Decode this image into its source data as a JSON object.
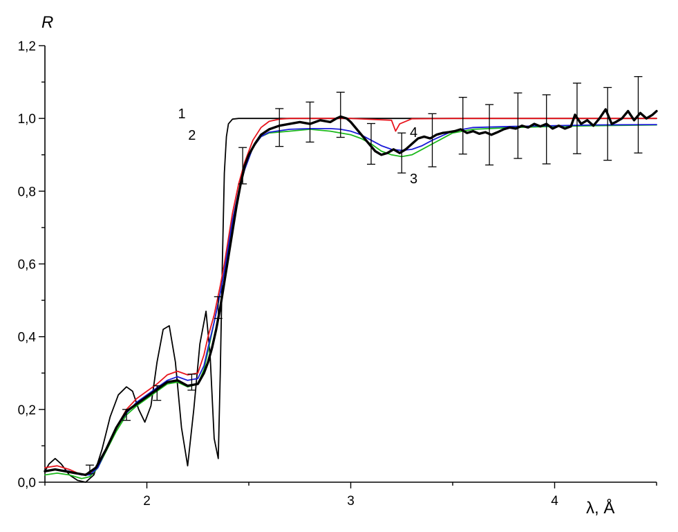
{
  "chart_data": {
    "type": "line",
    "xlabel": "λ, Å",
    "ylabel": "R",
    "xlim": [
      1.5,
      4.5
    ],
    "ylim": [
      0.0,
      1.2
    ],
    "x_ticks": [
      {
        "value": 2,
        "label": "2"
      },
      {
        "value": 3,
        "label": "3"
      },
      {
        "value": 4,
        "label": "4"
      }
    ],
    "y_ticks": [
      {
        "value": 0.0,
        "label": "0,0"
      },
      {
        "value": 0.2,
        "label": "0,2"
      },
      {
        "value": 0.4,
        "label": "0,4"
      },
      {
        "value": 0.6,
        "label": "0,6"
      },
      {
        "value": 0.8,
        "label": "0,8"
      },
      {
        "value": 1.0,
        "label": "1,0"
      },
      {
        "value": 1.2,
        "label": "1,2"
      }
    ],
    "x_minor_step": 0.5,
    "y_minor_step": 0.1,
    "grid": false,
    "series": [
      {
        "color": "#000000",
        "width": 1.8,
        "x": [
          1.5,
          1.52,
          1.55,
          1.58,
          1.62,
          1.66,
          1.7,
          1.74,
          1.78,
          1.82,
          1.86,
          1.9,
          1.93,
          1.96,
          1.99,
          2.02,
          2.05,
          2.08,
          2.11,
          2.14,
          2.17,
          2.2,
          2.23,
          2.26,
          2.29,
          2.31,
          2.33,
          2.35,
          2.36,
          2.37,
          2.38,
          2.39,
          2.4,
          2.42,
          2.45,
          2.5,
          2.6,
          3.0,
          3.5,
          4.0,
          4.5
        ],
        "y": [
          0.03,
          0.05,
          0.065,
          0.05,
          0.02,
          0.005,
          0.0,
          0.02,
          0.09,
          0.18,
          0.24,
          0.262,
          0.25,
          0.2,
          0.165,
          0.21,
          0.33,
          0.42,
          0.43,
          0.33,
          0.15,
          0.045,
          0.2,
          0.38,
          0.47,
          0.35,
          0.12,
          0.065,
          0.3,
          0.6,
          0.85,
          0.95,
          0.985,
          0.998,
          1.0,
          1.0,
          1.0,
          1.0,
          1.0,
          1.0,
          1.0
        ]
      },
      {
        "color": "#e8141c",
        "width": 1.8,
        "x": [
          1.5,
          1.56,
          1.62,
          1.68,
          1.72,
          1.76,
          1.8,
          1.85,
          1.9,
          1.95,
          2.0,
          2.05,
          2.1,
          2.15,
          2.2,
          2.25,
          2.28,
          2.3,
          2.33,
          2.36,
          2.38,
          2.4,
          2.42,
          2.45,
          2.48,
          2.52,
          2.56,
          2.6,
          2.65,
          2.7,
          3.0,
          3.2,
          3.22,
          3.24,
          3.3,
          3.5,
          4.0,
          4.5
        ],
        "y": [
          0.04,
          0.045,
          0.035,
          0.02,
          0.025,
          0.045,
          0.09,
          0.15,
          0.2,
          0.23,
          0.25,
          0.27,
          0.295,
          0.305,
          0.295,
          0.3,
          0.35,
          0.4,
          0.46,
          0.54,
          0.6,
          0.67,
          0.74,
          0.82,
          0.88,
          0.94,
          0.975,
          0.992,
          0.998,
          1.0,
          1.0,
          0.995,
          0.965,
          0.985,
          0.999,
          1.0,
          1.0,
          1.0
        ]
      },
      {
        "color": "#1ab81a",
        "width": 1.8,
        "x": [
          1.5,
          1.56,
          1.62,
          1.68,
          1.72,
          1.76,
          1.8,
          1.85,
          1.9,
          1.95,
          2.0,
          2.05,
          2.1,
          2.15,
          2.2,
          2.25,
          2.28,
          2.3,
          2.33,
          2.36,
          2.38,
          2.4,
          2.42,
          2.45,
          2.48,
          2.52,
          2.56,
          2.6,
          2.7,
          2.8,
          2.9,
          2.95,
          3.0,
          3.05,
          3.1,
          3.15,
          3.2,
          3.25,
          3.3,
          3.35,
          3.4,
          3.45,
          3.5,
          3.6,
          3.8,
          4.0,
          4.2,
          4.5
        ],
        "y": [
          0.02,
          0.025,
          0.02,
          0.01,
          0.015,
          0.04,
          0.085,
          0.14,
          0.185,
          0.21,
          0.23,
          0.25,
          0.27,
          0.275,
          0.262,
          0.27,
          0.31,
          0.36,
          0.44,
          0.52,
          0.58,
          0.65,
          0.72,
          0.8,
          0.86,
          0.92,
          0.95,
          0.96,
          0.965,
          0.97,
          0.965,
          0.96,
          0.955,
          0.945,
          0.93,
          0.91,
          0.9,
          0.895,
          0.9,
          0.915,
          0.93,
          0.945,
          0.96,
          0.97,
          0.975,
          0.978,
          0.98,
          0.982
        ]
      },
      {
        "color": "#1a1ad8",
        "width": 1.8,
        "x": [
          1.5,
          1.56,
          1.62,
          1.68,
          1.72,
          1.76,
          1.8,
          1.85,
          1.9,
          1.95,
          2.0,
          2.05,
          2.1,
          2.15,
          2.2,
          2.25,
          2.28,
          2.3,
          2.33,
          2.36,
          2.38,
          2.4,
          2.42,
          2.45,
          2.48,
          2.52,
          2.56,
          2.6,
          2.7,
          2.8,
          2.9,
          2.95,
          3.0,
          3.05,
          3.1,
          3.15,
          3.2,
          3.25,
          3.3,
          3.35,
          3.4,
          3.45,
          3.5,
          3.6,
          3.8,
          4.0,
          4.2,
          4.5
        ],
        "y": [
          0.03,
          0.035,
          0.03,
          0.02,
          0.02,
          0.04,
          0.09,
          0.15,
          0.19,
          0.22,
          0.24,
          0.26,
          0.28,
          0.29,
          0.28,
          0.285,
          0.32,
          0.37,
          0.44,
          0.52,
          0.58,
          0.65,
          0.72,
          0.8,
          0.86,
          0.92,
          0.95,
          0.962,
          0.97,
          0.972,
          0.972,
          0.97,
          0.965,
          0.955,
          0.94,
          0.925,
          0.915,
          0.912,
          0.915,
          0.925,
          0.94,
          0.953,
          0.965,
          0.975,
          0.978,
          0.98,
          0.982,
          0.983
        ]
      },
      {
        "color": "#000000",
        "width": 3.4,
        "x": [
          1.5,
          1.55,
          1.6,
          1.65,
          1.7,
          1.75,
          1.8,
          1.85,
          1.9,
          1.95,
          2.0,
          2.05,
          2.1,
          2.15,
          2.2,
          2.25,
          2.28,
          2.3,
          2.32,
          2.34,
          2.36,
          2.38,
          2.4,
          2.42,
          2.44,
          2.46,
          2.48,
          2.5,
          2.53,
          2.56,
          2.6,
          2.65,
          2.7,
          2.75,
          2.8,
          2.85,
          2.9,
          2.93,
          2.95,
          2.98,
          3.0,
          3.03,
          3.06,
          3.09,
          3.12,
          3.15,
          3.18,
          3.21,
          3.24,
          3.27,
          3.3,
          3.33,
          3.36,
          3.39,
          3.42,
          3.45,
          3.48,
          3.51,
          3.54,
          3.57,
          3.6,
          3.63,
          3.66,
          3.69,
          3.72,
          3.75,
          3.78,
          3.81,
          3.84,
          3.87,
          3.9,
          3.93,
          3.96,
          3.99,
          4.02,
          4.05,
          4.08,
          4.1,
          4.13,
          4.16,
          4.19,
          4.22,
          4.25,
          4.28,
          4.3,
          4.33,
          4.36,
          4.39,
          4.42,
          4.45,
          4.48,
          4.5
        ],
        "y": [
          0.03,
          0.035,
          0.03,
          0.025,
          0.02,
          0.04,
          0.09,
          0.15,
          0.195,
          0.215,
          0.235,
          0.255,
          0.275,
          0.28,
          0.265,
          0.27,
          0.3,
          0.33,
          0.37,
          0.42,
          0.48,
          0.55,
          0.62,
          0.69,
          0.76,
          0.82,
          0.87,
          0.9,
          0.93,
          0.955,
          0.97,
          0.98,
          0.985,
          0.99,
          0.985,
          0.995,
          0.99,
          1.0,
          1.005,
          1.0,
          0.99,
          0.97,
          0.95,
          0.93,
          0.91,
          0.9,
          0.905,
          0.915,
          0.905,
          0.915,
          0.93,
          0.945,
          0.95,
          0.945,
          0.955,
          0.96,
          0.962,
          0.965,
          0.97,
          0.96,
          0.965,
          0.958,
          0.962,
          0.955,
          0.962,
          0.97,
          0.975,
          0.972,
          0.98,
          0.975,
          0.985,
          0.978,
          0.985,
          0.972,
          0.98,
          0.972,
          0.978,
          1.01,
          0.985,
          0.995,
          0.98,
          1.0,
          1.025,
          0.985,
          0.99,
          1.0,
          1.02,
          0.995,
          1.015,
          1.0,
          1.01,
          1.02
        ]
      }
    ],
    "error_bars": {
      "color": "#000000",
      "x": [
        1.72,
        1.9,
        2.05,
        2.22,
        2.35,
        2.47,
        2.65,
        2.8,
        2.95,
        3.1,
        3.25,
        3.4,
        3.55,
        3.68,
        3.82,
        3.96,
        4.11,
        4.26,
        4.41
      ],
      "y": [
        0.035,
        0.185,
        0.245,
        0.275,
        0.48,
        0.87,
        0.975,
        0.99,
        1.01,
        0.93,
        0.905,
        0.94,
        0.98,
        0.955,
        0.98,
        0.97,
        1.0,
        0.985,
        1.01
      ],
      "err": [
        0.012,
        0.015,
        0.02,
        0.022,
        0.03,
        0.05,
        0.052,
        0.055,
        0.062,
        0.056,
        0.055,
        0.073,
        0.078,
        0.083,
        0.09,
        0.095,
        0.097,
        0.1,
        0.105
      ]
    },
    "annotations": [
      {
        "text": "1",
        "x": 2.39,
        "y": 1.0
      },
      {
        "text": "2",
        "x": 2.44,
        "y": 0.96
      },
      {
        "text": "3",
        "x": 3.29,
        "y": 0.86
      },
      {
        "text": "4",
        "x": 3.29,
        "y": 0.96
      }
    ]
  }
}
